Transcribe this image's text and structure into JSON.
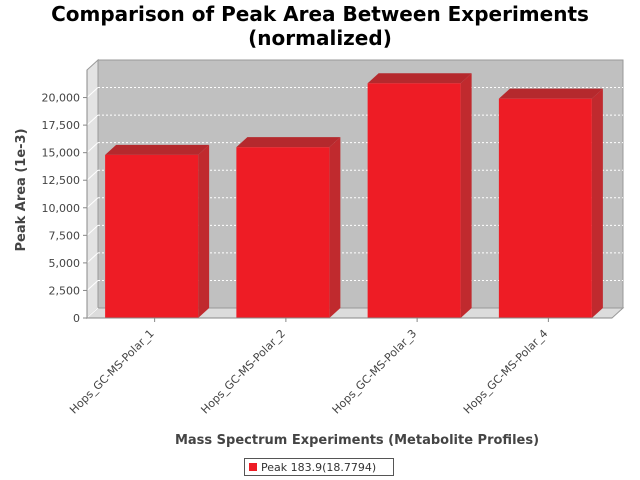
{
  "chart_data": {
    "type": "bar",
    "title": [
      "Comparison of Peak Area Between Experiments",
      "(normalized)"
    ],
    "xlabel": "Mass Spectrum Experiments (Metabolite Profiles)",
    "ylabel": "Peak Area (1e-3)",
    "categories": [
      "Hops_GC-MS-Polar_1",
      "Hops_GC-MS-Polar_2",
      "Hops_GC-MS-Polar_3",
      "Hops_GC-MS-Polar_4"
    ],
    "series": [
      {
        "name": "Peak 183.9(18.7794)",
        "values": [
          14800,
          15500,
          21300,
          19900
        ]
      }
    ],
    "ylim": [
      0,
      22500
    ],
    "yticks": [
      0,
      2500,
      5000,
      7500,
      10000,
      12500,
      15000,
      17500,
      20000
    ],
    "ytick_labels": [
      "0",
      "2,500",
      "5,000",
      "7,500",
      "10,000",
      "12,500",
      "15,000",
      "17,500",
      "20,000"
    ],
    "grid": true,
    "legend_position": "bottom",
    "colors": {
      "bar_front": "#ee1c25",
      "bar_top": "#b5292d",
      "bar_side": "#c02a2e",
      "plot_bg": "#c0c0c0",
      "floor": "#dcdcdc"
    }
  }
}
